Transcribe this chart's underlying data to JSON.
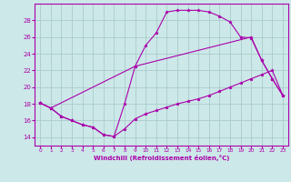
{
  "bg_color": "#cce8e8",
  "grid_color": "#aacccc",
  "line_color": "#aa00aa",
  "marker": "*",
  "xlabel": "Windchill (Refroidissement éolien,°C)",
  "xlim": [
    -0.5,
    23.5
  ],
  "ylim": [
    13.0,
    30.0
  ],
  "yticks": [
    14,
    16,
    18,
    20,
    22,
    24,
    26,
    28
  ],
  "xticks": [
    0,
    1,
    2,
    3,
    4,
    5,
    6,
    7,
    8,
    9,
    10,
    11,
    12,
    13,
    14,
    15,
    16,
    17,
    18,
    19,
    20,
    21,
    22,
    23
  ],
  "curve1_x": [
    0,
    1,
    2,
    3,
    4,
    5,
    6,
    7,
    8,
    9,
    10,
    11,
    12,
    13,
    14,
    15,
    16,
    17,
    18,
    19,
    20,
    21,
    22,
    23
  ],
  "curve1_y": [
    18.1,
    17.5,
    16.5,
    16.0,
    15.5,
    15.2,
    14.3,
    14.1,
    18.0,
    22.5,
    25.0,
    26.5,
    29.0,
    29.2,
    29.2,
    29.2,
    29.0,
    28.5,
    27.8,
    26.0,
    25.9,
    23.2,
    21.0,
    19.0
  ],
  "curve2_x": [
    0,
    1,
    2,
    3,
    4,
    5,
    6,
    7,
    8,
    9,
    10,
    11,
    12,
    13,
    14,
    15,
    16,
    17,
    18,
    19,
    20,
    21,
    22,
    23
  ],
  "curve2_y": [
    18.1,
    17.5,
    16.5,
    16.0,
    15.5,
    15.2,
    14.3,
    14.1,
    15.0,
    16.2,
    16.8,
    17.2,
    17.6,
    18.0,
    18.3,
    18.6,
    19.0,
    19.5,
    20.0,
    20.5,
    21.0,
    21.5,
    22.0,
    19.0
  ],
  "curve3_x": [
    0,
    1,
    9,
    20,
    21,
    22,
    23
  ],
  "curve3_y": [
    18.1,
    17.5,
    22.5,
    26.0,
    23.2,
    21.0,
    19.0
  ]
}
